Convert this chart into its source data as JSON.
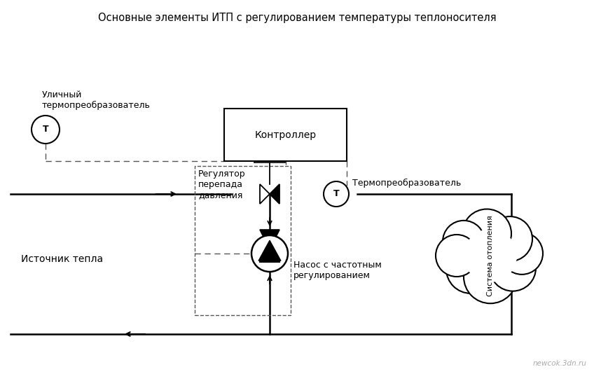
{
  "title": "Основные элементы ИТП с регулированием температуры теплоносителя",
  "title_fontsize": 10.5,
  "bg_color": "#ffffff",
  "line_color": "#000000",
  "dashed_color": "#555555",
  "labels": {
    "outdoor_sensor": "Уличный\nтермопреобразователь",
    "controller": "Контроллер",
    "regulator": "Регулятор\nперепада\nдавления",
    "temp_sensor": "Термопреобразователь",
    "heat_source": "Источник тепла",
    "pump": "Насос с частотным\nрегулированием",
    "heating": "Система отопления",
    "watermark": "newcok.3dn.ru"
  }
}
